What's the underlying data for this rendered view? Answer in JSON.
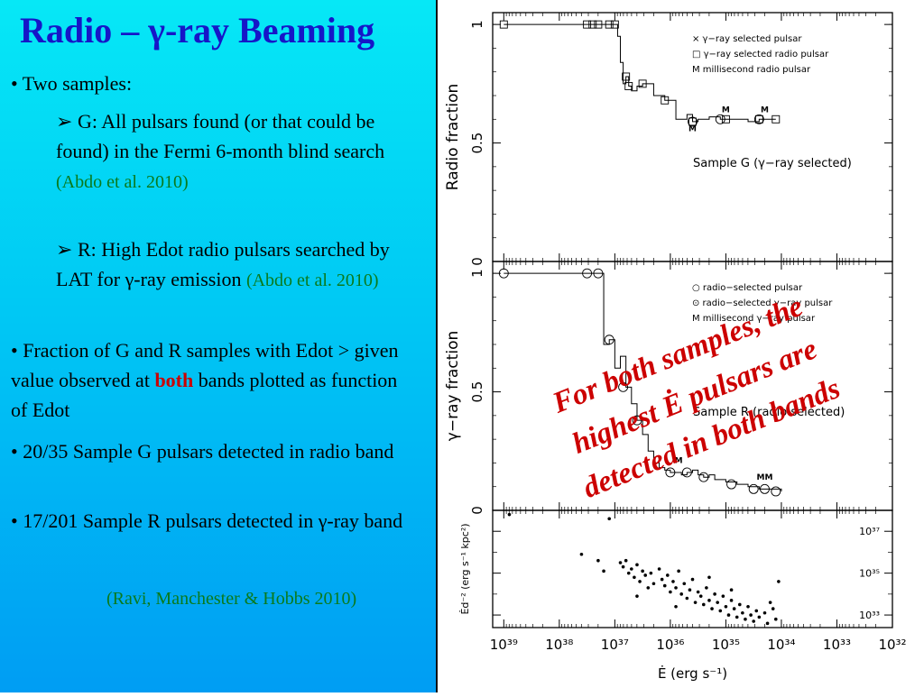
{
  "slide": {
    "title": "Radio – γ-ray Beaming",
    "bullet1": "• Two samples:",
    "sub_g_text": "G: All pulsars found (or that could be found) in the Fermi 6-month blind search",
    "sub_g_ref": "(Abdo et al. 2010)",
    "sub_r_text": "R: High Edot radio pulsars searched by LAT for γ-ray emission",
    "sub_r_ref": "(Abdo et al. 2010)",
    "bullet2_a": "• Fraction of G and R samples with Edot > given value observed at",
    "bullet2_both": "both",
    "bullet2_b": "bands plotted as function of Edot",
    "bullet3": "• 20/35 Sample G pulsars detected in radio band",
    "bullet4": "• 17/201 Sample R pulsars detected in γ-ray band",
    "citation": "(Ravi, Manchester & Hobbs 2010)",
    "overlay_line1": "For both samples, the",
    "overlay_line2": "highest Ė pulsars are",
    "overlay_line3": "detected in both bands"
  },
  "chart_data": [
    {
      "type": "line",
      "panel": "top",
      "ylabel": "Radio fraction",
      "ylim": [
        0,
        1.05
      ],
      "yticks": [
        0,
        0.5,
        1
      ],
      "ytick_labels": [
        "0",
        "0.5",
        "1"
      ],
      "x_scale": "log-reversed",
      "legend": [
        "× γ−ray selected pulsar",
        "□ γ−ray selected radio pulsar",
        "M millisecond radio pulsar"
      ],
      "annotation": "Sample G (γ−ray selected)",
      "series": [
        {
          "x": [
            39.0,
            37.5,
            37.4,
            37.3,
            37.1,
            37.0,
            36.95,
            36.9,
            36.85,
            36.8,
            36.75,
            36.7,
            36.6,
            36.5,
            36.3,
            36.1,
            35.9,
            35.7,
            35.6,
            35.5,
            35.3,
            35.1,
            34.9,
            34.6,
            34.4,
            34.1
          ],
          "y": [
            1.0,
            1.0,
            1.0,
            1.0,
            1.0,
            1.0,
            0.95,
            0.84,
            0.75,
            0.78,
            0.74,
            0.72,
            0.74,
            0.75,
            0.7,
            0.68,
            0.6,
            0.62,
            0.59,
            0.6,
            0.61,
            0.6,
            0.6,
            0.59,
            0.6,
            0.6
          ]
        }
      ],
      "markers_square_x": [
        39.0,
        37.5,
        37.4,
        37.3,
        37.1,
        37.0,
        36.8,
        36.75,
        36.5,
        36.1,
        35.6,
        35.0,
        34.4,
        34.1
      ],
      "markers_circle_x": [
        35.6,
        35.1,
        34.4
      ],
      "m_labels": [
        {
          "x": 35.6,
          "y": 0.55,
          "text": "M"
        },
        {
          "x": 35.0,
          "y": 0.63,
          "text": "M"
        },
        {
          "x": 34.3,
          "y": 0.63,
          "text": "M"
        }
      ]
    },
    {
      "type": "line",
      "panel": "middle",
      "ylabel": "γ−ray fraction",
      "ylim": [
        0,
        1.05
      ],
      "yticks": [
        0,
        0.5,
        1
      ],
      "ytick_labels": [
        "0",
        "0.5",
        "1"
      ],
      "x_scale": "log-reversed",
      "legend": [
        "○ radio−selected pulsar",
        "⊙ radio−selected γ−ray pulsar",
        "M millisecond γ−ray pulsar"
      ],
      "annotation": "Sample R (radio selected)",
      "series": [
        {
          "x": [
            39.0,
            37.5,
            37.3,
            37.2,
            37.1,
            37.0,
            36.9,
            36.8,
            36.7,
            36.6,
            36.5,
            36.4,
            36.3,
            36.2,
            36.1,
            36.0,
            35.9,
            35.8,
            35.7,
            35.6,
            35.5,
            35.4,
            35.3,
            35.2,
            35.0,
            34.8,
            34.6,
            34.4,
            34.2,
            34.0
          ],
          "y": [
            1.0,
            1.0,
            1.0,
            0.7,
            0.72,
            0.6,
            0.65,
            0.52,
            0.45,
            0.38,
            0.32,
            0.25,
            0.2,
            0.18,
            0.17,
            0.16,
            0.16,
            0.15,
            0.16,
            0.17,
            0.15,
            0.14,
            0.15,
            0.13,
            0.12,
            0.11,
            0.1,
            0.09,
            0.09,
            0.08
          ]
        }
      ],
      "markers_circle_x": [
        39.0,
        37.5,
        37.3,
        37.1,
        36.85,
        36.6,
        36.0,
        35.7,
        35.4,
        34.9,
        34.5,
        34.3,
        34.1
      ],
      "m_labels": [
        {
          "x": 35.85,
          "y": 0.2,
          "text": "M"
        },
        {
          "x": 34.3,
          "y": 0.13,
          "text": "MM"
        }
      ]
    },
    {
      "type": "scatter",
      "panel": "bottom",
      "ylabel": "Ėd⁻² (erg s⁻¹ kpc²)",
      "xlabel": "Ė (erg s⁻¹)",
      "x_scale": "log-reversed",
      "xlim": [
        39.2,
        32.0
      ],
      "xticks": [
        39,
        38,
        37,
        36,
        35,
        34,
        33,
        32
      ],
      "xtick_labels": [
        "10³⁹",
        "10³⁸",
        "10³⁷",
        "10³⁶",
        "10³⁵",
        "10³⁴",
        "10³³",
        "10³²"
      ],
      "y_scale": "log",
      "ylim": [
        32.4,
        38.0
      ],
      "yticks": [
        33,
        35,
        37
      ],
      "ytick_labels": [
        "10³³",
        "10³⁵",
        "10³⁷"
      ],
      "points": [
        [
          38.9,
          37.8
        ],
        [
          37.6,
          35.9
        ],
        [
          37.3,
          35.6
        ],
        [
          37.2,
          35.1
        ],
        [
          37.1,
          37.6
        ],
        [
          36.9,
          35.5
        ],
        [
          36.85,
          35.3
        ],
        [
          36.8,
          35.6
        ],
        [
          36.75,
          35.0
        ],
        [
          36.7,
          35.2
        ],
        [
          36.65,
          34.8
        ],
        [
          36.6,
          35.4
        ],
        [
          36.55,
          34.6
        ],
        [
          36.5,
          35.1
        ],
        [
          36.45,
          34.9
        ],
        [
          36.4,
          34.3
        ],
        [
          36.35,
          35.0
        ],
        [
          36.3,
          34.5
        ],
        [
          36.2,
          35.2
        ],
        [
          36.15,
          34.7
        ],
        [
          36.1,
          34.4
        ],
        [
          36.05,
          34.9
        ],
        [
          36.0,
          34.1
        ],
        [
          35.95,
          34.6
        ],
        [
          35.9,
          34.3
        ],
        [
          35.85,
          35.1
        ],
        [
          35.8,
          34.0
        ],
        [
          35.75,
          34.5
        ],
        [
          35.7,
          33.8
        ],
        [
          35.65,
          34.2
        ],
        [
          35.6,
          34.7
        ],
        [
          35.55,
          33.6
        ],
        [
          35.5,
          34.1
        ],
        [
          35.45,
          33.9
        ],
        [
          35.4,
          33.5
        ],
        [
          35.35,
          34.3
        ],
        [
          35.3,
          33.7
        ],
        [
          35.25,
          33.3
        ],
        [
          35.2,
          34.0
        ],
        [
          35.15,
          33.6
        ],
        [
          35.1,
          33.2
        ],
        [
          35.05,
          33.9
        ],
        [
          35.0,
          33.4
        ],
        [
          34.95,
          33.0
        ],
        [
          34.9,
          33.7
        ],
        [
          34.85,
          33.3
        ],
        [
          34.8,
          32.9
        ],
        [
          34.75,
          33.5
        ],
        [
          34.7,
          33.1
        ],
        [
          34.65,
          32.8
        ],
        [
          34.6,
          33.4
        ],
        [
          34.55,
          33.0
        ],
        [
          34.5,
          32.7
        ],
        [
          34.45,
          33.2
        ],
        [
          34.4,
          32.9
        ],
        [
          34.3,
          33.1
        ],
        [
          34.25,
          32.6
        ],
        [
          34.2,
          33.6
        ],
        [
          34.15,
          33.3
        ],
        [
          34.1,
          32.8
        ],
        [
          34.05,
          34.6
        ],
        [
          35.9,
          33.4
        ],
        [
          35.3,
          34.8
        ],
        [
          34.9,
          34.2
        ],
        [
          36.6,
          33.9
        ]
      ]
    }
  ]
}
